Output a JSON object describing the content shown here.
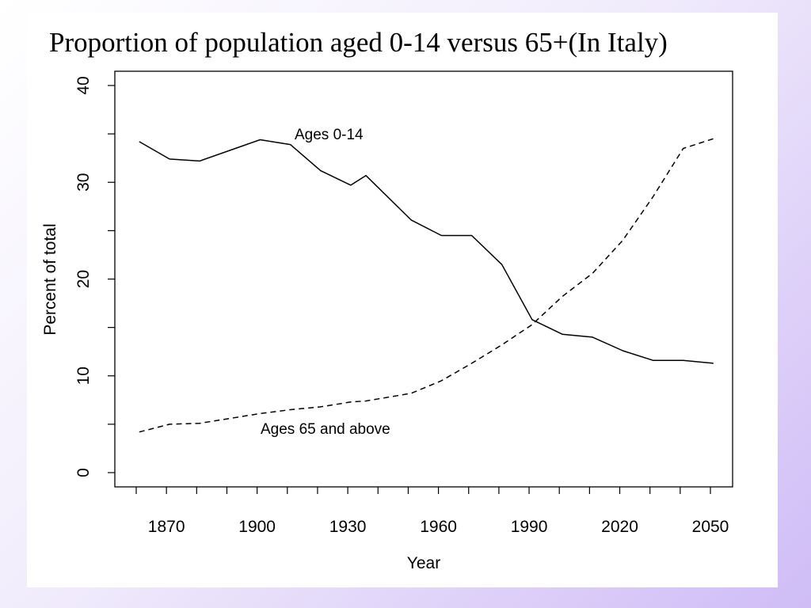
{
  "slide": {
    "title": "Proportion of population aged 0-14 versus 65+(In Italy)"
  },
  "colors": {
    "background_start": "#ffffff",
    "background_end": "#cfbcf6",
    "ink": "#000000"
  },
  "chart_data": {
    "type": "line",
    "title": "",
    "xlabel": "Year",
    "ylabel": "Percent of total",
    "xlim": [
      1860,
      2050
    ],
    "ylim": [
      0,
      40
    ],
    "x_ticks": [
      1870,
      1900,
      1930,
      1960,
      1990,
      2020,
      2050
    ],
    "x_minor_ticks": [
      1860,
      1880,
      1890,
      1910,
      1920,
      1940,
      1950,
      1970,
      1980,
      2000,
      2010,
      2030,
      2040
    ],
    "y_ticks": [
      0,
      10,
      20,
      30,
      40
    ],
    "y_minor_ticks": [
      5,
      15,
      25,
      35
    ],
    "grid": false,
    "legend": "none",
    "series": [
      {
        "name": "Ages 0-14",
        "style": "solid",
        "x": [
          1861,
          1871,
          1881,
          1901,
          1911,
          1921,
          1931,
          1936,
          1951,
          1961,
          1971,
          1981,
          1991,
          2001,
          2011,
          2021,
          2031,
          2041,
          2051
        ],
        "y": [
          34.2,
          32.4,
          32.2,
          34.4,
          33.9,
          31.2,
          29.7,
          30.7,
          26.1,
          24.5,
          24.5,
          21.5,
          15.8,
          14.3,
          14.0,
          12.6,
          11.6,
          11.6,
          11.3
        ]
      },
      {
        "name": "Ages 65 and above",
        "style": "dashed",
        "x": [
          1861,
          1871,
          1881,
          1901,
          1911,
          1921,
          1931,
          1936,
          1951,
          1961,
          1971,
          1981,
          1991,
          2001,
          2011,
          2021,
          2031,
          2041,
          2051
        ],
        "y": [
          4.2,
          5.0,
          5.1,
          6.1,
          6.5,
          6.8,
          7.3,
          7.4,
          8.2,
          9.5,
          11.3,
          13.2,
          15.3,
          18.2,
          20.6,
          24.0,
          28.5,
          33.5,
          34.5
        ]
      }
    ]
  }
}
